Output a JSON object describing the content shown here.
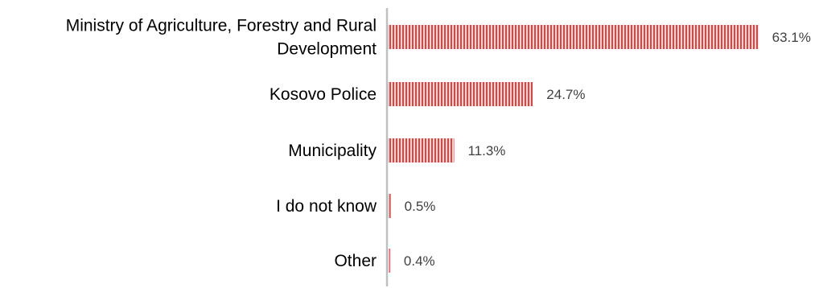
{
  "chart_data": {
    "type": "bar",
    "orientation": "horizontal",
    "title": "",
    "xlabel": "",
    "ylabel": "",
    "xlim": [
      0,
      100
    ],
    "grid": false,
    "categories": [
      [
        "Ministry of Agriculture, Forestry and Rural",
        "Development"
      ],
      [
        "Kosovo Police"
      ],
      [
        "Municipality"
      ],
      [
        "I do not know"
      ],
      [
        "Other"
      ]
    ],
    "values": [
      63.1,
      24.7,
      11.3,
      0.5,
      0.4
    ],
    "value_labels": [
      "63.1%",
      "24.7%",
      "11.3%",
      "0.5%",
      "0.4%"
    ],
    "colors": {
      "bar_fill": "#f4cccc",
      "bar_stripe": "#c0504d",
      "axis": "#bfbfbf"
    },
    "bar_pattern": "vertical-stripes"
  }
}
